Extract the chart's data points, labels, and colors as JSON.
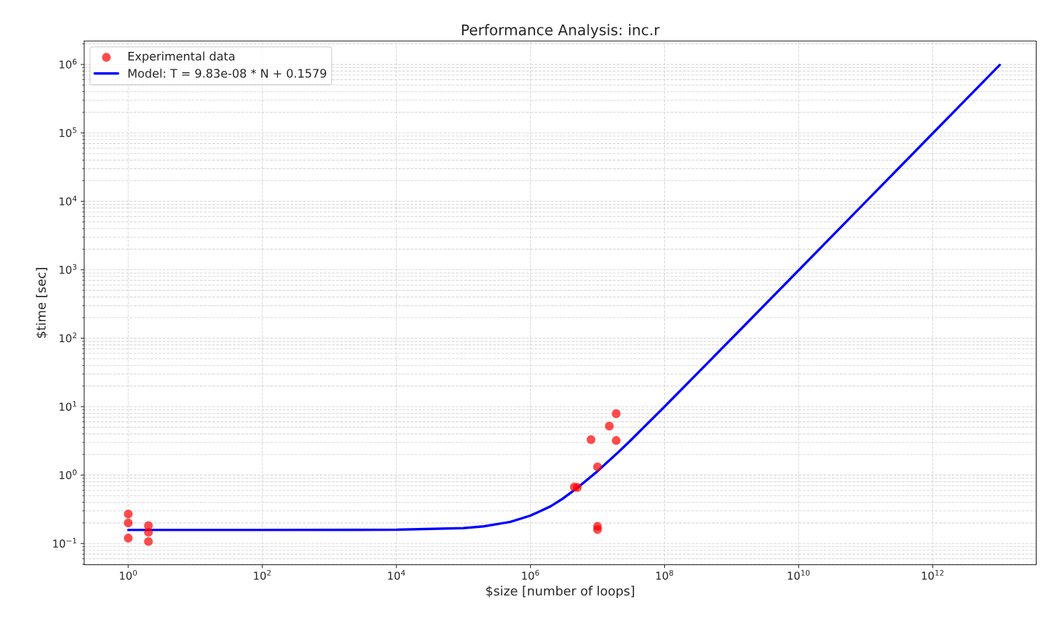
{
  "chart_data": {
    "type": "scatter",
    "title": "Performance Analysis: inc.r",
    "xlabel": "$size [number of loops]",
    "ylabel": "$time [sec]",
    "log": "xy",
    "grid": true,
    "legend": "top left",
    "marker": "circle",
    "xlim": [
      0.22,
      35000000000000.0
    ],
    "ylim": [
      0.049,
      2200000.0
    ],
    "xticks": [
      {
        "value": 1,
        "label": "10$^{0}$"
      },
      {
        "value": 100,
        "label": "10$^{2}$"
      },
      {
        "value": 10000,
        "label": "10$^{4}$"
      },
      {
        "value": 1000000,
        "label": "10$^{6}$"
      },
      {
        "value": 100000000,
        "label": "10$^{8}$"
      },
      {
        "value": 10000000000,
        "label": "10$^{10}$"
      },
      {
        "value": 1000000000000,
        "label": "10$^{12}$"
      }
    ],
    "yticks": [
      {
        "value": 0.1,
        "label": "10$^{−1}$"
      },
      {
        "value": 1,
        "label": "10$^{0}$"
      },
      {
        "value": 10,
        "label": "10$^{1}$"
      },
      {
        "value": 100,
        "label": "10$^{2}$"
      },
      {
        "value": 1000,
        "label": "10$^{3}$"
      },
      {
        "value": 10000,
        "label": "10$^{4}$"
      },
      {
        "value": 100000,
        "label": "10$^{5}$"
      },
      {
        "value": 1000000,
        "label": "10$^{6}$"
      }
    ],
    "series": [
      {
        "name": "Experimental data",
        "color": "#ff0000",
        "x": [
          1,
          1,
          1,
          2,
          2,
          2,
          4500000,
          5000000,
          10000000,
          10000000,
          10000000,
          8000000,
          15000000,
          19000000,
          19000000
        ],
        "values": [
          0.27,
          0.2,
          0.12,
          0.183,
          0.146,
          0.107,
          0.67,
          0.66,
          1.32,
          0.178,
          0.16,
          3.3,
          5.2,
          7.9,
          3.2
        ]
      },
      {
        "name": "Model: T = 9.83e-08 * N + 0.1579",
        "type": "line",
        "color": "#0000ff",
        "marker": "none",
        "line_style": "solid",
        "x": [
          1,
          100,
          10000,
          100000,
          200000,
          500000,
          1000000,
          2000000,
          3000000,
          5000000,
          10000000,
          20000000,
          30000000,
          100000000,
          1000000000,
          10000000000,
          100000000000,
          1000000000000,
          10000000000000
        ],
        "values": [
          0.158,
          0.158,
          0.159,
          0.168,
          0.178,
          0.207,
          0.256,
          0.35,
          0.45,
          0.65,
          1.14,
          2.12,
          3.1,
          9.99,
          98.5,
          983,
          9830,
          98300,
          983000
        ]
      }
    ]
  }
}
